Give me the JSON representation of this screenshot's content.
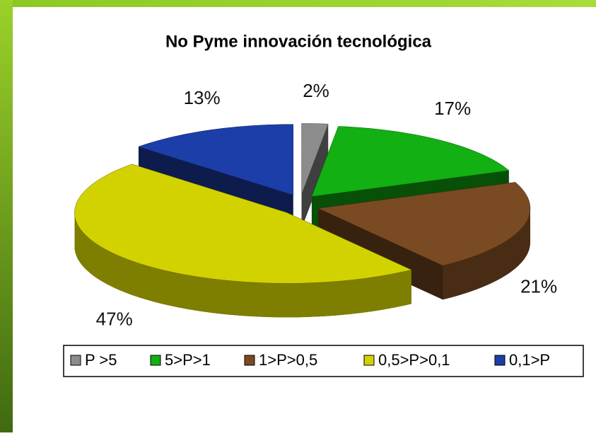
{
  "chart_data": {
    "type": "pie",
    "title": "No Pyme innovación tecnológica",
    "categories": [
      "P >5",
      "5>P>1",
      "1>P>0,5",
      "0,5>P>0,1",
      "0,1>P"
    ],
    "values": [
      2,
      17,
      21,
      47,
      13
    ],
    "value_labels": [
      "2%",
      "17%",
      "21%",
      "47%",
      "13%"
    ],
    "colors": [
      "#8c8c8c",
      "#12b012",
      "#7a4a22",
      "#d2d200",
      "#1c3ea8"
    ],
    "legend": "bottom"
  }
}
